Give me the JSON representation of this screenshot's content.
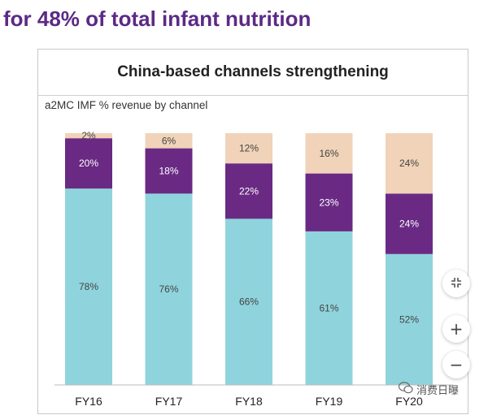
{
  "heading": "for 48% of total infant nutrition",
  "slide_title": "China-based channels strengthening",
  "chart_data": {
    "type": "bar",
    "stacked": true,
    "title": "China-based channels strengthening",
    "subtitle": "a2MC IMF % revenue by channel",
    "categories": [
      "FY16",
      "FY17",
      "FY18",
      "FY19",
      "FY20"
    ],
    "series": [
      {
        "values": [
          78,
          76,
          66,
          61,
          52
        ],
        "labels": [
          "78%",
          "76%",
          "66%",
          "61%",
          "52%"
        ],
        "color": "#8fd4dc"
      },
      {
        "values": [
          20,
          18,
          22,
          23,
          24
        ],
        "labels": [
          "20%",
          "18%",
          "22%",
          "23%",
          "24%"
        ],
        "color": "#6a2a84"
      },
      {
        "values": [
          2,
          6,
          12,
          16,
          24
        ],
        "labels": [
          "2%",
          "6%",
          "12%",
          "16%",
          "24%"
        ],
        "color": "#f0d3b8"
      }
    ],
    "ylim": [
      0,
      100
    ],
    "grid": false
  },
  "controls": {
    "collapse_icon": "collapse-arrows-icon",
    "zoom_in_label": "+",
    "zoom_out_label": "−"
  },
  "watermark": {
    "icon": "wechat-icon",
    "text": "消费日曝"
  }
}
